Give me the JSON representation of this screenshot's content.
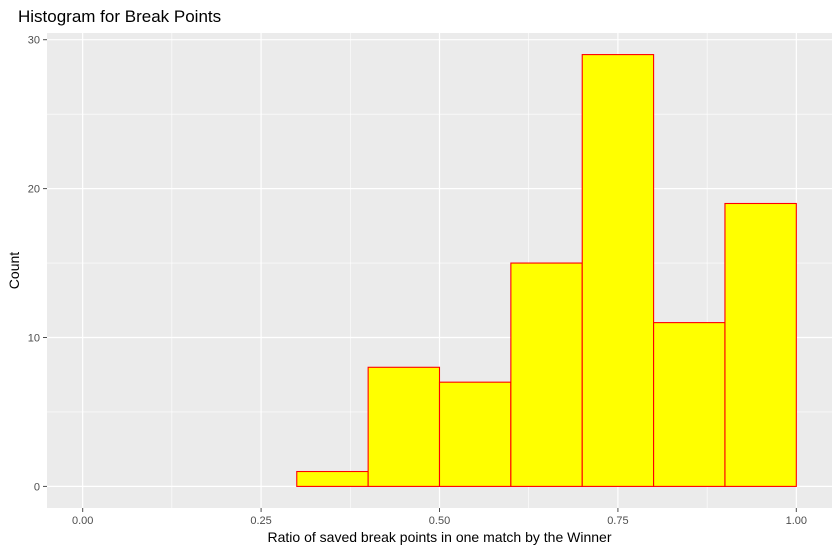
{
  "chart_data": {
    "type": "bar",
    "title": "Histogram for Break Points",
    "xlabel": "Ratio of saved break points in one match by the Winner",
    "ylabel": "Count",
    "bins": [
      {
        "x0": 0.0,
        "x1": 0.1,
        "count": 0
      },
      {
        "x0": 0.1,
        "x1": 0.2,
        "count": 0
      },
      {
        "x0": 0.2,
        "x1": 0.3,
        "count": 0
      },
      {
        "x0": 0.3,
        "x1": 0.4,
        "count": 1
      },
      {
        "x0": 0.4,
        "x1": 0.5,
        "count": 8
      },
      {
        "x0": 0.5,
        "x1": 0.6,
        "count": 7
      },
      {
        "x0": 0.6,
        "x1": 0.7,
        "count": 15
      },
      {
        "x0": 0.7,
        "x1": 0.8,
        "count": 29
      },
      {
        "x0": 0.8,
        "x1": 0.9,
        "count": 11
      },
      {
        "x0": 0.9,
        "x1": 1.0,
        "count": 19
      }
    ],
    "xlim": [
      -0.05,
      1.05
    ],
    "ylim": [
      -1.45,
      30.45
    ],
    "x_ticks": [
      0,
      0.25,
      0.5,
      0.75,
      1
    ],
    "x_tick_labels": [
      "0.00",
      "0.25",
      "0.50",
      "0.75",
      "1.00"
    ],
    "y_ticks": [
      0,
      10,
      20,
      30
    ],
    "y_tick_labels": [
      "0",
      "10",
      "20",
      "30"
    ],
    "grid": true,
    "colors": {
      "panel": "#ebebeb",
      "grid": "#ffffff",
      "bar_fill": "#ffff00",
      "bar_stroke": "#ff0000",
      "tick": "#4d4d4d"
    }
  }
}
